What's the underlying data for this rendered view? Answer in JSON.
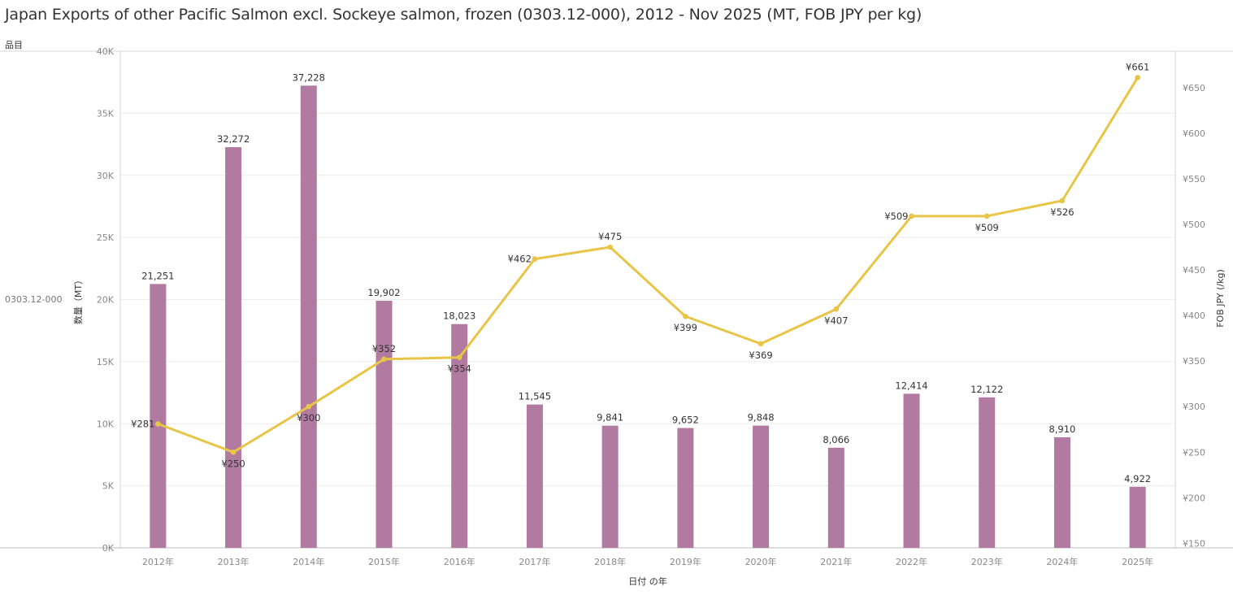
{
  "title": "Japan Exports of other Pacific Salmon excl. Sockeye salmon, frozen (0303.12-000), 2012 - Nov 2025 (MT, FOB JPY per kg)",
  "row_header": "品目",
  "row_label": "0303.12-000",
  "colors": {
    "bar": "#b07aa1",
    "line": "#e8c547",
    "grid": "#ececec",
    "axis": "#d4d4d4"
  },
  "chart_data": {
    "type": "bar",
    "categories": [
      "2012年",
      "2013年",
      "2014年",
      "2015年",
      "2016年",
      "2017年",
      "2018年",
      "2019年",
      "2020年",
      "2021年",
      "2022年",
      "2023年",
      "2024年",
      "2025年"
    ],
    "xlabel": "日付 の年",
    "series": [
      {
        "type": "bar",
        "axis": "left",
        "values": [
          21251,
          32272,
          37228,
          19902,
          18023,
          11545,
          9841,
          9652,
          9848,
          8066,
          12414,
          12122,
          8910,
          4922
        ],
        "labels": [
          "21,251",
          "32,272",
          "37,228",
          "19,902",
          "18,023",
          "11,545",
          "9,841",
          "9,652",
          "9,848",
          "8,066",
          "12,414",
          "12,122",
          "8,910",
          "4,922"
        ]
      },
      {
        "type": "line",
        "axis": "right",
        "values": [
          281,
          250,
          300,
          352,
          354,
          462,
          475,
          399,
          369,
          407,
          509,
          509,
          526,
          661
        ],
        "labels": [
          "¥281",
          "¥250",
          "¥300",
          "¥352",
          "¥354",
          "¥462",
          "¥475",
          "¥399",
          "¥369",
          "¥407",
          "¥509",
          "¥509",
          "¥526",
          "¥661"
        ],
        "label_side": [
          "left",
          "below",
          "below",
          "above",
          "below",
          "left",
          "above",
          "below",
          "below",
          "below",
          "left",
          "below",
          "below",
          "above"
        ]
      }
    ],
    "y_left": {
      "label": "数量（MT）",
      "range": [
        0,
        40000
      ],
      "ticks": [
        0,
        5000,
        10000,
        15000,
        20000,
        25000,
        30000,
        35000,
        40000
      ],
      "tick_labels": [
        "0K",
        "5K",
        "10K",
        "15K",
        "20K",
        "25K",
        "30K",
        "35K",
        "40K"
      ]
    },
    "y_right": {
      "label": "FOB JPY (/kg)",
      "range": [
        145,
        690
      ],
      "ticks": [
        150,
        200,
        250,
        300,
        350,
        400,
        450,
        500,
        550,
        600,
        650
      ],
      "tick_labels": [
        "¥150",
        "¥200",
        "¥250",
        "¥300",
        "¥350",
        "¥400",
        "¥450",
        "¥500",
        "¥550",
        "¥600",
        "¥650"
      ]
    },
    "grid": true
  }
}
